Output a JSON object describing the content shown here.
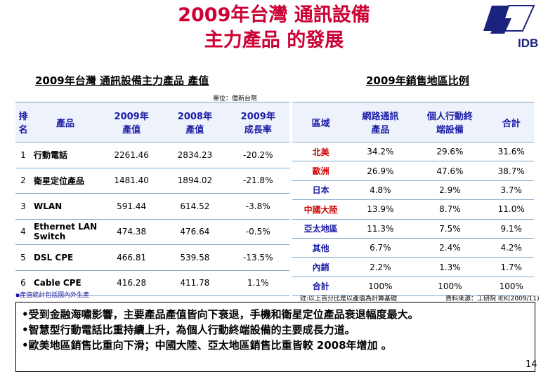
{
  "header": {
    "title_line1": "2009年台灣 通訊設備",
    "title_line2": "主力產品 的發展",
    "logo_text": "IDB"
  },
  "left_section": {
    "heading": "2009年台灣 通訊設備主力產品   產值",
    "unit": "單位：億新台幣",
    "columns": [
      "排名",
      "產品",
      "2009年產值",
      "2008年產值",
      "2009年成長率"
    ],
    "column_lines": [
      [
        "排",
        "名"
      ],
      [
        "產品"
      ],
      [
        "2009年",
        "產值"
      ],
      [
        "2008年",
        "產值"
      ],
      [
        "2009年",
        "成長率"
      ]
    ],
    "rows": [
      {
        "rank": "1",
        "product": "行動電話",
        "v2009": "2261.46",
        "v2008": "2834.23",
        "growth": "-20.2%"
      },
      {
        "rank": "2",
        "product": "衛星定位產品",
        "v2009": "1481.40",
        "v2008": "1894.02",
        "growth": "-21.8%"
      },
      {
        "rank": "3",
        "product": "WLAN",
        "v2009": "591.44",
        "v2008": "614.52",
        "growth": "-3.8%"
      },
      {
        "rank": "4",
        "product": "Ethernet LAN Switch",
        "v2009": "474.38",
        "v2008": "476.64",
        "growth": "-0.5%"
      },
      {
        "rank": "5",
        "product": "DSL CPE",
        "v2009": "466.81",
        "v2008": "539.58",
        "growth": "-13.5%"
      },
      {
        "rank": "6",
        "product": "Cable CPE",
        "v2009": "416.28",
        "v2008": "411.78",
        "growth": "1.1%"
      }
    ],
    "note": "▪產值統計包括國內外生產"
  },
  "right_section": {
    "heading": "2009年銷售地區比例",
    "column_lines": [
      [
        "區域"
      ],
      [
        "網路通訊",
        "產品"
      ],
      [
        "個人行動終",
        "端設備"
      ],
      [
        "合計"
      ]
    ],
    "rows": [
      {
        "region": "北美",
        "net": "34.2%",
        "mobile": "29.6%",
        "total": "31.6%",
        "style": "red"
      },
      {
        "region": "歐洲",
        "net": "26.9%",
        "mobile": "47.6%",
        "total": "38.7%",
        "style": "red"
      },
      {
        "region": "日本",
        "net": "4.8%",
        "mobile": "2.9%",
        "total": "3.7%",
        "style": "blue"
      },
      {
        "region": "中國大陸",
        "net": "13.9%",
        "mobile": "8.7%",
        "total": "11.0%",
        "style": "red"
      },
      {
        "region": "亞太地區",
        "net": "11.3%",
        "mobile": "7.5%",
        "total": "9.1%",
        "style": "blue"
      },
      {
        "region": "其他",
        "net": "6.7%",
        "mobile": "2.4%",
        "total": "4.2%",
        "style": "blue"
      },
      {
        "region": "內銷",
        "net": "2.2%",
        "mobile": "1.3%",
        "total": "1.7%",
        "style": "blue"
      },
      {
        "region": "合計",
        "net": "100%",
        "mobile": "100%",
        "total": "100%",
        "style": "blue"
      }
    ],
    "note": "註:以上百分比是以產值為計算基礎",
    "source": "資料來源：工研院 IEK(2009/11)"
  },
  "summary": {
    "bullets": [
      "•受到金融海嘯影響，主要產品產值皆向下衰退，手機和衛星定位產品衰退幅度最大。",
      "•智慧型行動電話比重持續上升，為個人行動終端設備的主要成長力道。",
      "•歐美地區銷售比重向下滑；中國大陸、亞太地區銷售比重皆較     2008年增加 。"
    ]
  },
  "page_number": "14",
  "colors": {
    "title": "#cc0033",
    "header_text": "#1a1aa6",
    "region_red": "#cc0000",
    "rule": "#7fa6cc",
    "logo": "#1a237e"
  }
}
